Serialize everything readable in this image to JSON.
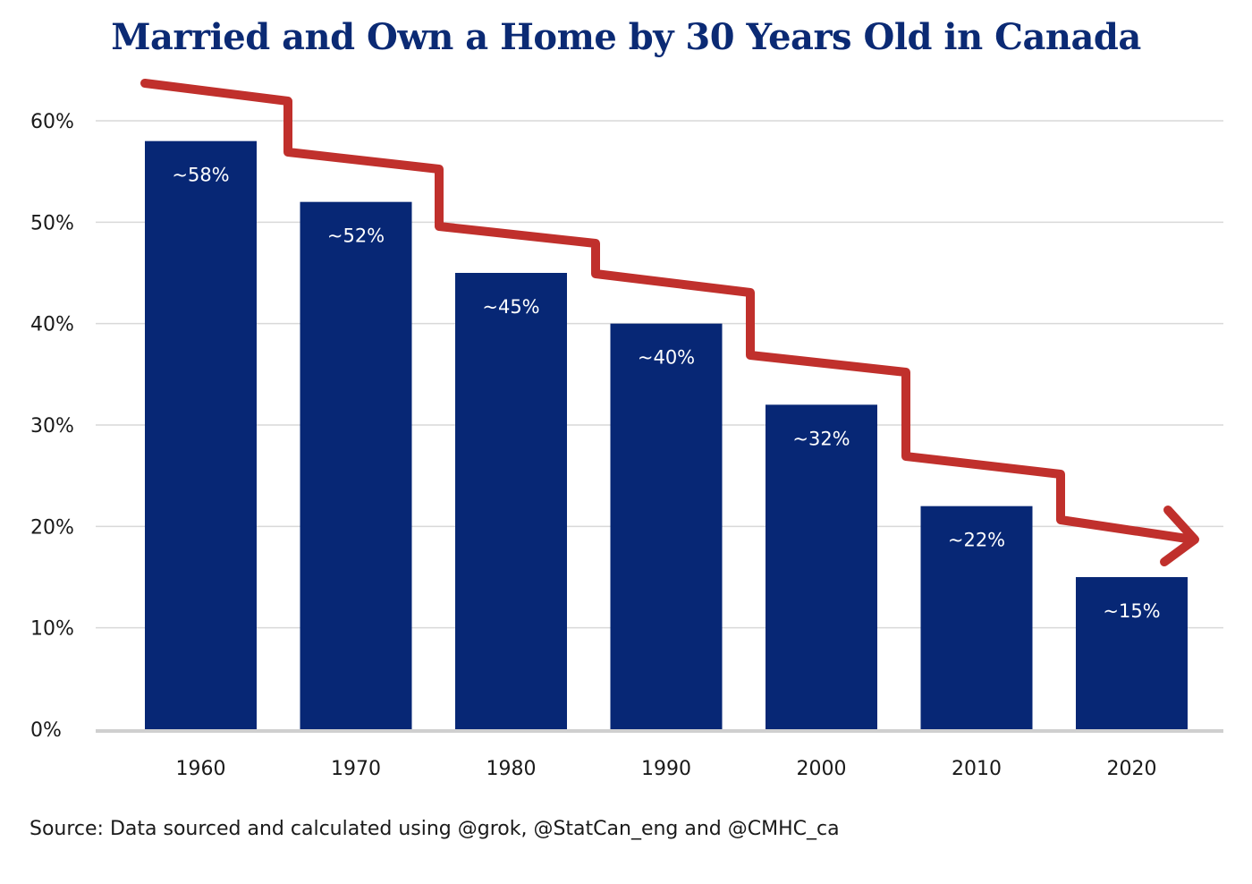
{
  "chart_data": {
    "type": "bar",
    "title": "Married and Own a Home by 30 Years Old in Canada",
    "categories": [
      "1960",
      "1970",
      "1980",
      "1990",
      "2000",
      "2010",
      "2020"
    ],
    "values": [
      58,
      52,
      45,
      40,
      32,
      22,
      15
    ],
    "data_labels": [
      "~58%",
      "~52%",
      "~45%",
      "~40%",
      "~32%",
      "~22%",
      "~15%"
    ],
    "yticks": [
      "0%",
      "10%",
      "20%",
      "30%",
      "40%",
      "50%",
      "60%"
    ],
    "ylim": [
      0,
      60
    ],
    "xlabel": "",
    "ylabel": "",
    "grid": true,
    "legend": "none",
    "annotation": "red downward stepped trend arrow",
    "colors": {
      "bar": "#072775",
      "arrow": "#c0302c",
      "grid": "#d9d9d9",
      "axis": "#cfcfcf",
      "title": "#0b2a74"
    }
  },
  "source": "Source: Data sourced and calculated using @grok, @StatCan_eng and @CMHC_ca"
}
